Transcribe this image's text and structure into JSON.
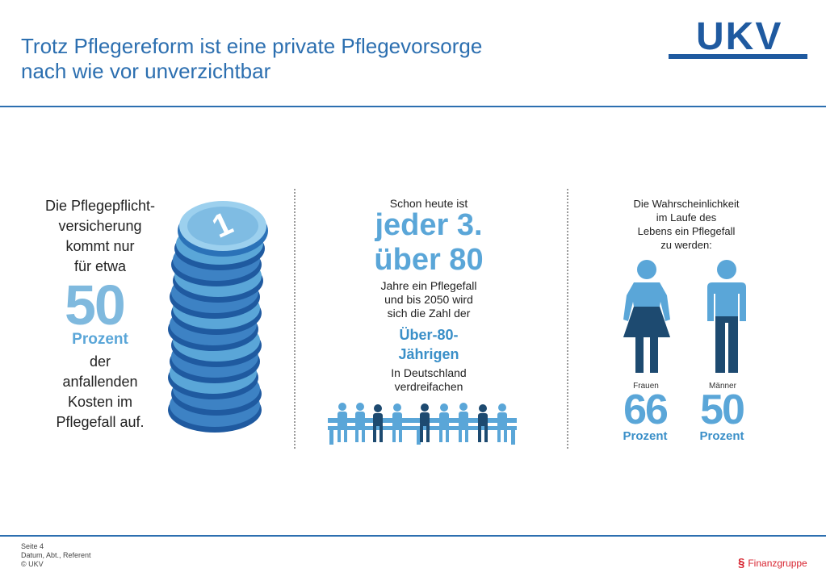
{
  "header": {
    "title_line1": "Trotz Pflegereform ist eine private Pflegevorsorge",
    "title_line2": "nach wie vor unverzichtbar",
    "logo": "UKV"
  },
  "left": {
    "line1": "Die Pflegepflicht-",
    "line2": "versicherung",
    "line3": "kommt nur",
    "line4": "für etwa",
    "big_number": "50",
    "unit": "Prozent",
    "rest1": "der",
    "rest2": "anfallenden",
    "rest3": "Kosten im",
    "rest4": "Pflegefall auf.",
    "coin_digit": "1"
  },
  "middle": {
    "intro": "Schon heute ist",
    "big1": "jeder 3.",
    "big2": "über 80",
    "text1": "Jahre ein Pflegefall",
    "text2": "und bis 2050 wird",
    "text3": "sich die Zahl der",
    "accent1": "Über-80-",
    "accent2": "Jährigen",
    "text4": "In Deutschland",
    "text5": "verdreifachen"
  },
  "right": {
    "line1": "Die Wahrscheinlichkeit",
    "line2": "im Laufe des",
    "line3": "Lebens ein Pflegefall",
    "line4": "zu werden:",
    "women": {
      "label": "Frauen",
      "value": "66",
      "unit": "Prozent"
    },
    "men": {
      "label": "Männer",
      "value": "50",
      "unit": "Prozent"
    }
  },
  "footer": {
    "page": "Seite 4",
    "meta": "Datum, Abt., Referent",
    "copyright": "© UKV",
    "brand": "Finanzgruppe"
  },
  "colors": {
    "primary": "#2c6fb0",
    "accent": "#5aa6d8",
    "dark": "#1d4a70",
    "brand_red": "#d7232f"
  }
}
